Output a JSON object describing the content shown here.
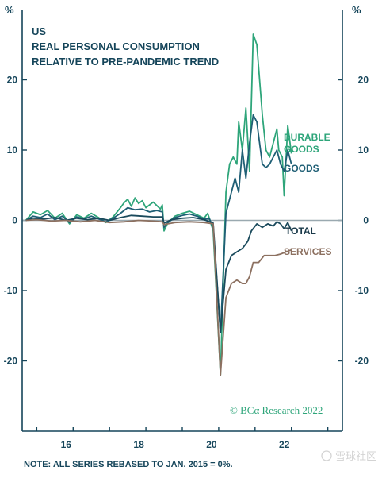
{
  "chart_data": {
    "type": "line",
    "title_lines": [
      "US",
      "REAL PERSONAL CONSUMPTION",
      "RELATIVE TO PRE-PANDEMIC TREND"
    ],
    "unit": "%",
    "y_ticks": [
      "20",
      "10",
      "0",
      "-10",
      "-20"
    ],
    "y_tick_values": [
      20,
      10,
      0,
      -10,
      -20
    ],
    "ylim": [
      -30,
      30
    ],
    "x_ticks": [
      "16",
      "18",
      "20",
      "22"
    ],
    "x_tick_values": [
      2016,
      2018,
      2020,
      2022
    ],
    "xlim": [
      2014.6,
      2023.4
    ],
    "zero_line": true,
    "credit": "© BCα Research 2022",
    "note": "NOTE: ALL SERIES REBASED TO JAN. 2015 = 0%.",
    "watermark": "雪球社区",
    "colors": {
      "durable": "#2ea57a",
      "goods": "#1f5f75",
      "total": "#1a4a5c",
      "services": "#8c7060",
      "axis": "#15455a",
      "zero": "#9aa9b0"
    },
    "series": [
      {
        "name": "DURABLE GOODS",
        "key": "durable",
        "points": [
          [
            2014.7,
            0
          ],
          [
            2014.9,
            1.2
          ],
          [
            2015.1,
            0.8
          ],
          [
            2015.3,
            1.4
          ],
          [
            2015.5,
            0.3
          ],
          [
            2015.7,
            1
          ],
          [
            2015.9,
            -0.5
          ],
          [
            2016.1,
            0.8
          ],
          [
            2016.3,
            0.3
          ],
          [
            2016.5,
            1
          ],
          [
            2016.7,
            0.4
          ],
          [
            2016.9,
            -0.3
          ],
          [
            2017.1,
            0.5
          ],
          [
            2017.3,
            1.8
          ],
          [
            2017.4,
            2.5
          ],
          [
            2017.5,
            3
          ],
          [
            2017.6,
            2
          ],
          [
            2017.7,
            3.2
          ],
          [
            2017.8,
            2.4
          ],
          [
            2017.9,
            2.8
          ],
          [
            2018.0,
            1.8
          ],
          [
            2018.2,
            2.6
          ],
          [
            2018.4,
            1.6
          ],
          [
            2018.45,
            2.2
          ],
          [
            2018.5,
            -1.5
          ],
          [
            2018.6,
            -0.4
          ],
          [
            2018.8,
            0.6
          ],
          [
            2019.0,
            1
          ],
          [
            2019.2,
            1.3
          ],
          [
            2019.4,
            0.8
          ],
          [
            2019.6,
            0.3
          ],
          [
            2019.7,
            1
          ],
          [
            2019.75,
            0.2
          ],
          [
            2019.85,
            -1.5
          ],
          [
            2020.05,
            -22
          ],
          [
            2020.2,
            4
          ],
          [
            2020.3,
            8
          ],
          [
            2020.4,
            9
          ],
          [
            2020.5,
            8
          ],
          [
            2020.55,
            14
          ],
          [
            2020.65,
            10
          ],
          [
            2020.75,
            16
          ],
          [
            2020.85,
            7
          ],
          [
            2020.95,
            26.5
          ],
          [
            2021.05,
            25
          ],
          [
            2021.2,
            15
          ],
          [
            2021.3,
            10
          ],
          [
            2021.4,
            9
          ],
          [
            2021.5,
            11
          ],
          [
            2021.6,
            13
          ],
          [
            2021.65,
            10
          ],
          [
            2021.75,
            9
          ],
          [
            2021.8,
            3.5
          ],
          [
            2021.9,
            13.5
          ],
          [
            2022.0,
            9.5
          ]
        ]
      },
      {
        "name": "GOODS",
        "key": "goods",
        "points": [
          [
            2014.7,
            0
          ],
          [
            2014.9,
            0.6
          ],
          [
            2015.1,
            0.4
          ],
          [
            2015.3,
            0.9
          ],
          [
            2015.5,
            0.1
          ],
          [
            2015.7,
            0.6
          ],
          [
            2015.9,
            -0.3
          ],
          [
            2016.1,
            0.5
          ],
          [
            2016.3,
            0.2
          ],
          [
            2016.5,
            0.6
          ],
          [
            2016.7,
            0.2
          ],
          [
            2016.9,
            -0.2
          ],
          [
            2017.1,
            0.3
          ],
          [
            2017.3,
            1
          ],
          [
            2017.5,
            1.8
          ],
          [
            2017.7,
            1.5
          ],
          [
            2017.9,
            1.6
          ],
          [
            2018.1,
            1.2
          ],
          [
            2018.3,
            1.4
          ],
          [
            2018.45,
            1.2
          ],
          [
            2018.5,
            -1
          ],
          [
            2018.6,
            -0.3
          ],
          [
            2018.8,
            0.4
          ],
          [
            2019.0,
            0.7
          ],
          [
            2019.2,
            0.9
          ],
          [
            2019.4,
            0.6
          ],
          [
            2019.6,
            0.2
          ],
          [
            2019.75,
            0.2
          ],
          [
            2019.85,
            -1
          ],
          [
            2020.05,
            -16
          ],
          [
            2020.2,
            1
          ],
          [
            2020.3,
            3
          ],
          [
            2020.45,
            6
          ],
          [
            2020.55,
            4
          ],
          [
            2020.65,
            10
          ],
          [
            2020.75,
            6
          ],
          [
            2020.85,
            11
          ],
          [
            2020.95,
            15
          ],
          [
            2021.05,
            14
          ],
          [
            2021.2,
            8
          ],
          [
            2021.3,
            7.5
          ],
          [
            2021.4,
            8
          ],
          [
            2021.5,
            9
          ],
          [
            2021.6,
            10
          ],
          [
            2021.7,
            8
          ],
          [
            2021.8,
            7
          ],
          [
            2021.9,
            10
          ],
          [
            2022.0,
            8
          ]
        ]
      },
      {
        "name": "TOTAL",
        "key": "total",
        "points": [
          [
            2014.7,
            0
          ],
          [
            2014.9,
            0.3
          ],
          [
            2015.2,
            0.2
          ],
          [
            2015.5,
            0.4
          ],
          [
            2015.8,
            0
          ],
          [
            2016.1,
            0.3
          ],
          [
            2016.4,
            0.1
          ],
          [
            2016.7,
            0.3
          ],
          [
            2017.0,
            0
          ],
          [
            2017.3,
            0.4
          ],
          [
            2017.6,
            0.7
          ],
          [
            2017.9,
            0.6
          ],
          [
            2018.2,
            0.5
          ],
          [
            2018.45,
            0.5
          ],
          [
            2018.5,
            -0.4
          ],
          [
            2018.7,
            0.1
          ],
          [
            2019.0,
            0.3
          ],
          [
            2019.3,
            0.4
          ],
          [
            2019.6,
            0.1
          ],
          [
            2019.85,
            -0.4
          ],
          [
            2020.05,
            -16
          ],
          [
            2020.2,
            -7
          ],
          [
            2020.35,
            -5
          ],
          [
            2020.5,
            -4.5
          ],
          [
            2020.65,
            -4
          ],
          [
            2020.8,
            -3
          ],
          [
            2020.9,
            -1.5
          ],
          [
            2021.05,
            -0.5
          ],
          [
            2021.2,
            -1
          ],
          [
            2021.35,
            -0.5
          ],
          [
            2021.5,
            -0.8
          ],
          [
            2021.6,
            -0.2
          ],
          [
            2021.7,
            -0.5
          ],
          [
            2021.8,
            -1.2
          ],
          [
            2021.9,
            -0.3
          ],
          [
            2022.0,
            -1.5
          ]
        ]
      },
      {
        "name": "SERVICES",
        "key": "services",
        "points": [
          [
            2014.7,
            0
          ],
          [
            2015.0,
            0.1
          ],
          [
            2015.4,
            -0.1
          ],
          [
            2015.8,
            0
          ],
          [
            2016.2,
            -0.2
          ],
          [
            2016.6,
            0
          ],
          [
            2017.0,
            -0.3
          ],
          [
            2017.4,
            -0.2
          ],
          [
            2017.8,
            0
          ],
          [
            2018.2,
            -0.1
          ],
          [
            2018.45,
            -0.2
          ],
          [
            2018.5,
            -0.6
          ],
          [
            2018.8,
            -0.3
          ],
          [
            2019.2,
            -0.2
          ],
          [
            2019.6,
            -0.3
          ],
          [
            2019.85,
            -0.5
          ],
          [
            2020.05,
            -22
          ],
          [
            2020.2,
            -11
          ],
          [
            2020.35,
            -9
          ],
          [
            2020.5,
            -8.5
          ],
          [
            2020.65,
            -9
          ],
          [
            2020.75,
            -9
          ],
          [
            2020.85,
            -8
          ],
          [
            2020.95,
            -6
          ],
          [
            2021.1,
            -6
          ],
          [
            2021.25,
            -5
          ],
          [
            2021.4,
            -5
          ],
          [
            2021.55,
            -5
          ],
          [
            2021.7,
            -4.8
          ],
          [
            2021.85,
            -4.5
          ],
          [
            2022.0,
            -4.2
          ]
        ]
      }
    ]
  }
}
